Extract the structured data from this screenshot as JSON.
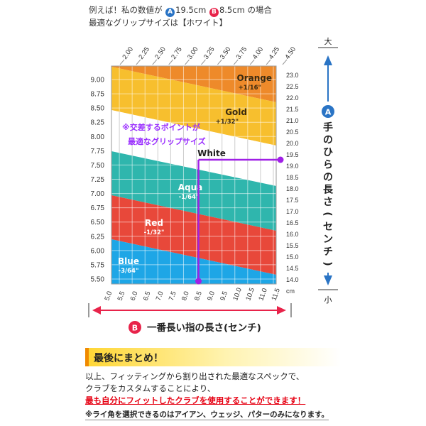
{
  "intro": {
    "line1_pre": "例えば！私の数値が",
    "badge_a": "A",
    "value_a": "19.5cm",
    "badge_b": "B",
    "value_b": "8.5cm",
    "line1_post": "の場合",
    "line2": "最適なグリップサイズは【ホワイト】"
  },
  "colors": {
    "orange": "#ee8a2a",
    "gold": "#f7bf2e",
    "white": "#ffffff",
    "aqua": "#2fb6ad",
    "red": "#e8483a",
    "blue": "#1ea6e6",
    "purple": "#a020e6",
    "axis_blue": "#2a74c5",
    "axis_red": "#e8234a",
    "callout": "#9b30ff"
  },
  "chart_data": {
    "type": "diagram",
    "bottom_axis": {
      "ticks": [
        "5.0",
        "5.5",
        "6.0",
        "6.5",
        "7.0",
        "7.5",
        "8.0",
        "8.5",
        "9.0",
        "9.5",
        "10.0",
        "10.5",
        "11.0",
        "11.5"
      ],
      "unit": "cm",
      "range": [
        5.0,
        11.5
      ]
    },
    "left_axis": {
      "ticks": [
        "9.00",
        "8.75",
        "8.50",
        "8.25",
        "8.00",
        "7.75",
        "7.50",
        "7.25",
        "7.00",
        "6.75",
        "6.50",
        "6.25",
        "6.00",
        "5.75",
        "5.50"
      ],
      "range": [
        5.5,
        9.0
      ]
    },
    "right_axis": {
      "ticks": [
        "23.0",
        "22.5",
        "22.0",
        "21.5",
        "21.0",
        "20.5",
        "20.0",
        "19.5",
        "19.0",
        "18.5",
        "18.0",
        "17.5",
        "17.0",
        "16.5",
        "16.0",
        "15.5",
        "15.0",
        "14.5",
        "14.0"
      ],
      "range": [
        14.0,
        23.0
      ]
    },
    "top_axis": {
      "ticks": [
        "2.00",
        "2.25",
        "2.50",
        "2.75",
        "3.00",
        "3.25",
        "3.50",
        "3.75",
        "4.00",
        "4.25",
        "4.50"
      ]
    },
    "bands": [
      {
        "name": "Orange",
        "size": "+1/16\"",
        "color": "#ee8a2a"
      },
      {
        "name": "Gold",
        "size": "+1/32\"",
        "color": "#f7bf2e"
      },
      {
        "name": "White",
        "size": "",
        "color": "#ffffff"
      },
      {
        "name": "Aqua",
        "size": "-1/64\"",
        "color": "#2fb6ad"
      },
      {
        "name": "Red",
        "size": "-1/32\"",
        "color": "#e8483a"
      },
      {
        "name": "Blue",
        "size": "-3/64\"",
        "color": "#1ea6e6"
      }
    ],
    "example_point": {
      "finger_cm": 8.5,
      "palm_cm": 19.5,
      "result": "White"
    },
    "callout": {
      "line1": "※交差するポイントが",
      "line2": "最適なグリップサイズ"
    }
  },
  "right_label": {
    "top": "大",
    "badge": "A",
    "text": "手のひらの長さ(センチ)",
    "bottom": "小"
  },
  "bottom_label": {
    "badge": "B",
    "text": "一番長い指の長さ(センチ)"
  },
  "summary": {
    "title": "最後にまとめ！",
    "line1": "以上、フィッティングから割り出された最適なスペックで、",
    "line2": "クラブをカスタムすることにより、",
    "line3": "最も自分にフィットしたクラブを使用することができます！",
    "note": "※ライ角を選択できるのはアイアン、ウェッジ、パターのみになります。"
  }
}
